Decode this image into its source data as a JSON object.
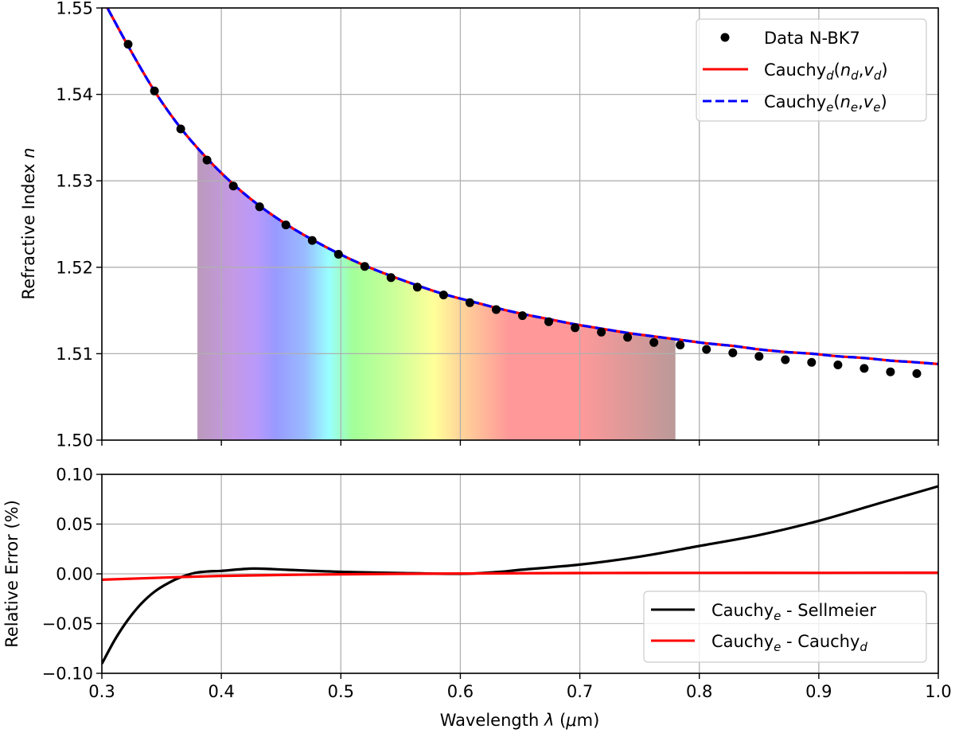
{
  "chart_data": [
    {
      "type": "line",
      "panel": "top",
      "title": "",
      "xlabel": "",
      "ylabel": "Refractive Index n",
      "xlim": [
        0.3,
        1.0
      ],
      "ylim": [
        1.5,
        1.55
      ],
      "xticks": [
        0.3,
        0.4,
        0.5,
        0.6,
        0.7,
        0.8,
        0.9,
        1.0
      ],
      "yticks": [
        1.5,
        1.51,
        1.52,
        1.53,
        1.54,
        1.55
      ],
      "ytick_labels": [
        "1.50",
        "1.51",
        "1.52",
        "1.53",
        "1.54",
        "1.55"
      ],
      "grid": true,
      "legend_position": "upper right",
      "visible_spectrum": {
        "range": [
          0.38,
          0.78
        ],
        "stops": [
          {
            "x": 0.38,
            "color": "#bb99bb"
          },
          {
            "x": 0.41,
            "color": "#c499e6"
          },
          {
            "x": 0.43,
            "color": "#b899fb"
          },
          {
            "x": 0.445,
            "color": "#9999ff"
          },
          {
            "x": 0.47,
            "color": "#99bbff"
          },
          {
            "x": 0.49,
            "color": "#99ffff"
          },
          {
            "x": 0.51,
            "color": "#a2ff99"
          },
          {
            "x": 0.545,
            "color": "#ccff99"
          },
          {
            "x": 0.578,
            "color": "#ffff99"
          },
          {
            "x": 0.6,
            "color": "#ffd599"
          },
          {
            "x": 0.64,
            "color": "#ff9999"
          },
          {
            "x": 0.7,
            "color": "#ff9999"
          },
          {
            "x": 0.78,
            "color": "#bb9999"
          }
        ]
      },
      "series": [
        {
          "name": "Data N-BK7",
          "kind": "scatter",
          "color": "#000000",
          "x": [
            0.322,
            0.344,
            0.366,
            0.388,
            0.41,
            0.432,
            0.454,
            0.476,
            0.498,
            0.52,
            0.542,
            0.564,
            0.586,
            0.608,
            0.63,
            0.652,
            0.674,
            0.696,
            0.718,
            0.74,
            0.762,
            0.784,
            0.806,
            0.828,
            0.85,
            0.872,
            0.894,
            0.916,
            0.938,
            0.96,
            0.982
          ],
          "y": [
            1.5458,
            1.5404,
            1.536,
            1.5324,
            1.5294,
            1.527,
            1.5249,
            1.5231,
            1.5215,
            1.5201,
            1.5188,
            1.5177,
            1.5168,
            1.5159,
            1.5151,
            1.5144,
            1.5137,
            1.513,
            1.5125,
            1.5119,
            1.5113,
            1.511,
            1.5105,
            1.5101,
            1.5097,
            1.5093,
            1.509,
            1.5087,
            1.5083,
            1.5079,
            1.5077
          ]
        },
        {
          "name": "Cauchy_d(n_d,v_d)",
          "kind": "line",
          "style": "solid",
          "color": "#ff0000",
          "x": [
            0.3,
            0.322,
            0.344,
            0.366,
            0.388,
            0.41,
            0.432,
            0.454,
            0.476,
            0.498,
            0.52,
            0.542,
            0.564,
            0.586,
            0.608,
            0.63,
            0.652,
            0.674,
            0.696,
            0.718,
            0.74,
            0.762,
            0.784,
            0.806,
            0.828,
            0.85,
            0.872,
            0.894,
            0.916,
            0.938,
            0.96,
            0.982,
            1.0
          ],
          "y": [
            1.5512,
            1.5456,
            1.5404,
            1.5361,
            1.5326,
            1.5296,
            1.5271,
            1.525,
            1.5232,
            1.5216,
            1.5202,
            1.519,
            1.5179,
            1.5169,
            1.5161,
            1.5153,
            1.5146,
            1.514,
            1.5134,
            1.5129,
            1.5124,
            1.512,
            1.5116,
            1.5112,
            1.5109,
            1.5105,
            1.5102,
            1.51,
            1.5097,
            1.5095,
            1.5092,
            1.509,
            1.5088
          ]
        },
        {
          "name": "Cauchy_e(n_e,v_e)",
          "kind": "line",
          "style": "dashed",
          "color": "#0000ff",
          "x": [
            0.3,
            0.322,
            0.344,
            0.366,
            0.388,
            0.41,
            0.432,
            0.454,
            0.476,
            0.498,
            0.52,
            0.542,
            0.564,
            0.586,
            0.608,
            0.63,
            0.652,
            0.674,
            0.696,
            0.718,
            0.74,
            0.762,
            0.784,
            0.806,
            0.828,
            0.85,
            0.872,
            0.894,
            0.916,
            0.938,
            0.96,
            0.982,
            1.0
          ],
          "y": [
            1.5512,
            1.5456,
            1.5404,
            1.5361,
            1.5326,
            1.5296,
            1.5271,
            1.525,
            1.5232,
            1.5216,
            1.5202,
            1.519,
            1.5179,
            1.5169,
            1.5161,
            1.5153,
            1.5146,
            1.514,
            1.5134,
            1.5129,
            1.5124,
            1.512,
            1.5116,
            1.5112,
            1.5109,
            1.5105,
            1.5102,
            1.51,
            1.5097,
            1.5095,
            1.5092,
            1.509,
            1.5088
          ]
        }
      ]
    },
    {
      "type": "line",
      "panel": "bottom",
      "title": "",
      "xlabel": "Wavelength λ (μm)",
      "ylabel": "Relative Error (%)",
      "xlim": [
        0.3,
        1.0
      ],
      "ylim": [
        -0.1,
        0.1
      ],
      "xticks": [
        0.3,
        0.4,
        0.5,
        0.6,
        0.7,
        0.8,
        0.9,
        1.0
      ],
      "xtick_labels": [
        "0.3",
        "0.4",
        "0.5",
        "0.6",
        "0.7",
        "0.8",
        "0.9",
        "1.0"
      ],
      "yticks": [
        -0.1,
        -0.05,
        0.0,
        0.05,
        0.1
      ],
      "ytick_labels": [
        "−0.10",
        "−0.05",
        "0.00",
        "0.05",
        "0.10"
      ],
      "grid": true,
      "legend_position": "lower right",
      "series": [
        {
          "name": "Cauchy_e - Sellmeier",
          "color": "#000000",
          "x": [
            0.3,
            0.311,
            0.322,
            0.333,
            0.344,
            0.356,
            0.367,
            0.378,
            0.39,
            0.4,
            0.427,
            0.456,
            0.5,
            0.544,
            0.6,
            0.633,
            0.65,
            0.7,
            0.75,
            0.8,
            0.85,
            0.9,
            0.95,
            1.0
          ],
          "y": [
            -0.0904,
            -0.066,
            -0.046,
            -0.03,
            -0.018,
            -0.009,
            -0.003,
            0.001,
            0.0025,
            0.003,
            0.0053,
            0.004,
            0.002,
            0.001,
            0.0,
            0.002,
            0.004,
            0.0093,
            0.0173,
            0.028,
            0.039,
            0.0533,
            0.0707,
            0.088
          ]
        },
        {
          "name": "Cauchy_e - Cauchy_d",
          "color": "#ff0000",
          "x": [
            0.3,
            0.4,
            0.5,
            0.6,
            0.7,
            0.8,
            0.9,
            1.0
          ],
          "y": [
            -0.0059,
            -0.0021,
            -0.0005,
            0.0003,
            0.0008,
            0.001,
            0.001,
            0.0011
          ]
        }
      ]
    }
  ],
  "legend_top": [
    {
      "base": "Data N-BK7",
      "sub": "",
      "tail": "",
      "marker": "dot"
    },
    {
      "base": "Cauchy",
      "sub": "d",
      "tail": "(n_d,v_d)",
      "marker": "solid-red"
    },
    {
      "base": "Cauchy",
      "sub": "e",
      "tail": "(n_e,v_e)",
      "marker": "dashed-blue"
    }
  ],
  "legend_bottom": [
    {
      "text1": "Cauchy",
      "sub1": "e",
      "text2": " - Sellmeier",
      "sub2": "",
      "marker": "solid-black"
    },
    {
      "text1": "Cauchy",
      "sub1": "e",
      "text2": " - Cauchy",
      "sub2": "d",
      "marker": "solid-red"
    }
  ],
  "labels": {
    "top_ylabel": "Refractive Index ",
    "top_ylabel_var": "n",
    "bottom_ylabel": "Relative Error (%)",
    "xlabel_pre": "Wavelength ",
    "xlabel_var": "λ",
    "xlabel_post": " (",
    "xlabel_unit_var": "μ",
    "xlabel_unit": "m)"
  },
  "colors": {
    "grid": "#b0b0b0",
    "axis": "#000000",
    "red": "#ff0000",
    "blue": "#0000ff",
    "black": "#000000"
  }
}
